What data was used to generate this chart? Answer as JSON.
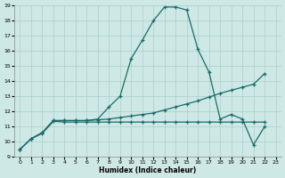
{
  "xlabel": "Humidex (Indice chaleur)",
  "bg_color": "#cde8e5",
  "grid_color": "#aacfcc",
  "line_color": "#1a6b6b",
  "series1_x": [
    0,
    1,
    2,
    3,
    4,
    5,
    6,
    7,
    8,
    9,
    10,
    11,
    12,
    13,
    14,
    15,
    16,
    17,
    18,
    19,
    20,
    21,
    22
  ],
  "series1_y": [
    9.5,
    10.2,
    10.6,
    11.4,
    11.4,
    11.4,
    11.4,
    11.5,
    12.3,
    13.0,
    15.5,
    16.7,
    18.0,
    18.9,
    18.9,
    18.7,
    16.1,
    14.6,
    11.5,
    11.8,
    11.5,
    9.8,
    11.0
  ],
  "series2_x": [
    0,
    1,
    2,
    3,
    4,
    5,
    6,
    7,
    8,
    9,
    10,
    11,
    12,
    13,
    14,
    15,
    16,
    17,
    18,
    19,
    20,
    21,
    22
  ],
  "series2_y": [
    9.5,
    10.2,
    10.6,
    11.4,
    11.4,
    11.4,
    11.4,
    11.45,
    11.5,
    11.6,
    11.7,
    11.8,
    11.9,
    12.1,
    12.3,
    12.5,
    12.7,
    12.95,
    13.2,
    13.4,
    13.6,
    13.8,
    14.5
  ],
  "series3_x": [
    0,
    1,
    2,
    3,
    4,
    5,
    6,
    7,
    8,
    9,
    10,
    11,
    12,
    13,
    14,
    15,
    16,
    17,
    18,
    19,
    20,
    21,
    22
  ],
  "series3_y": [
    9.5,
    10.2,
    10.55,
    11.35,
    11.3,
    11.3,
    11.3,
    11.3,
    11.3,
    11.3,
    11.3,
    11.3,
    11.3,
    11.3,
    11.3,
    11.3,
    11.3,
    11.3,
    11.3,
    11.3,
    11.3,
    11.3,
    11.3
  ],
  "xmin": -0.5,
  "xmax": 23.5,
  "ymin": 9,
  "ymax": 19,
  "xticks": [
    0,
    1,
    2,
    3,
    4,
    5,
    6,
    7,
    8,
    9,
    10,
    11,
    12,
    13,
    14,
    15,
    16,
    17,
    18,
    19,
    20,
    21,
    22,
    23
  ],
  "yticks": [
    9,
    10,
    11,
    12,
    13,
    14,
    15,
    16,
    17,
    18,
    19
  ]
}
